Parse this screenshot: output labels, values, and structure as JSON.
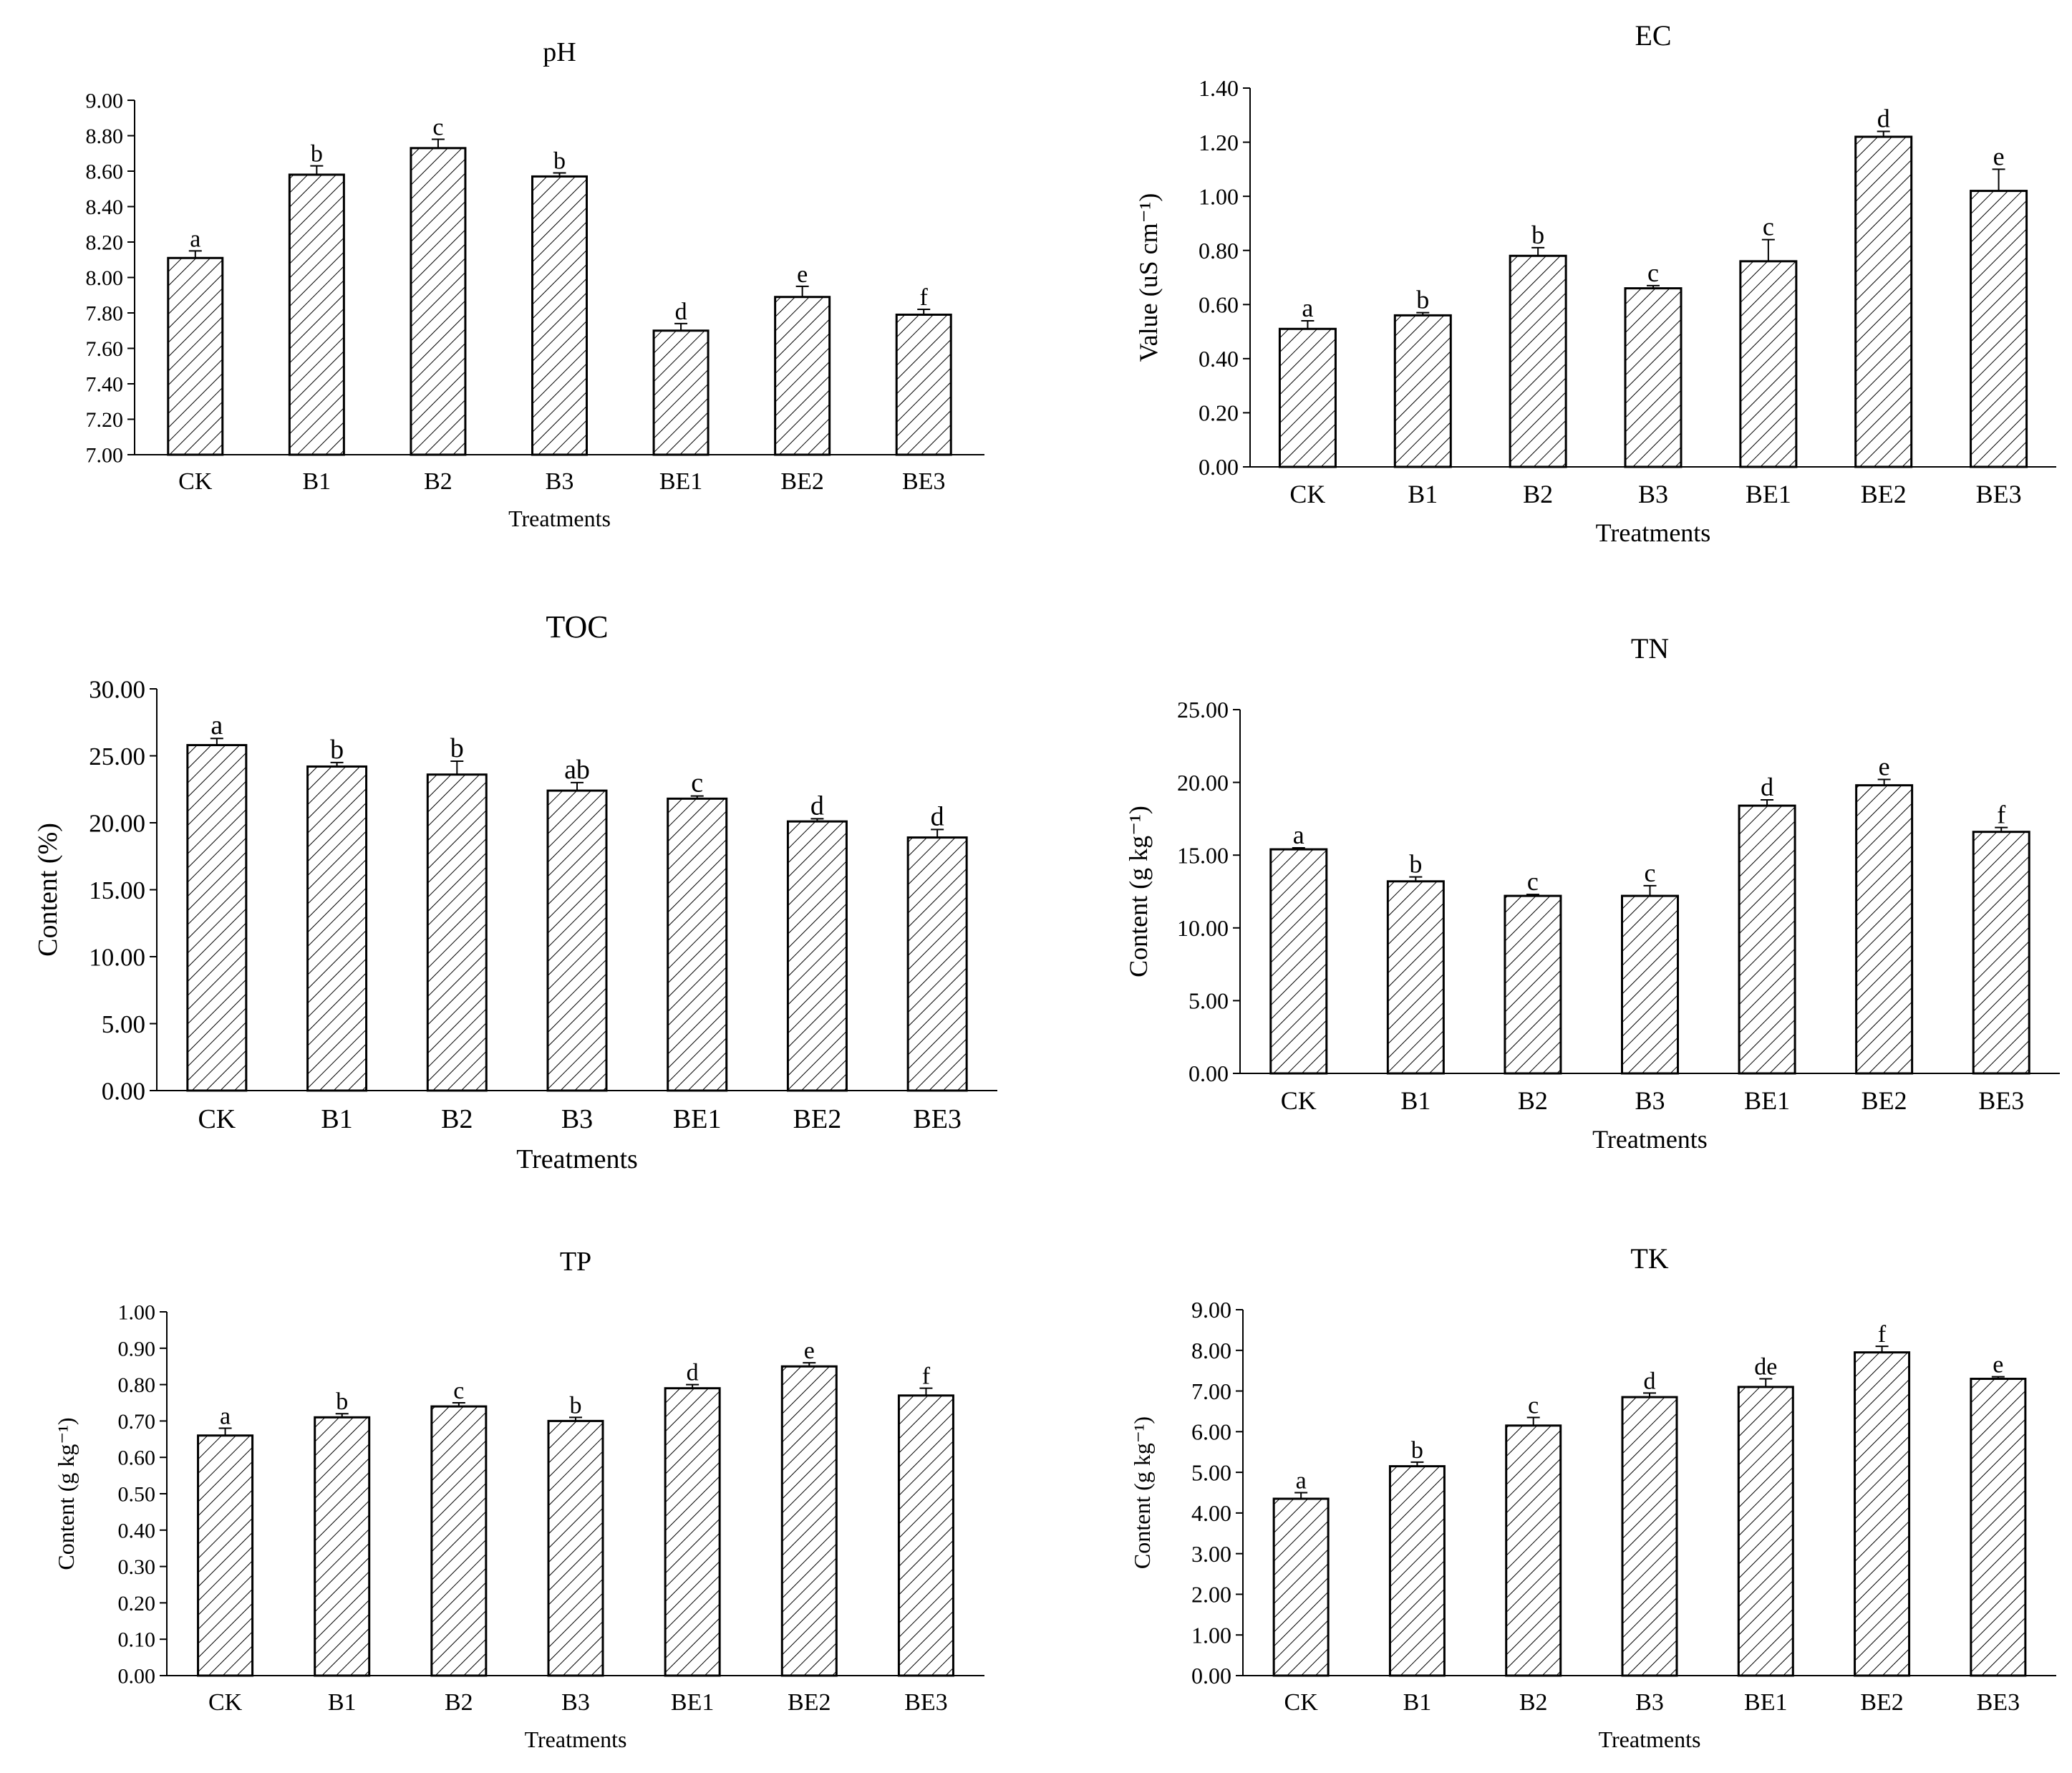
{
  "chart_data": [
    {
      "type": "bar",
      "title": "pH",
      "xlabel": "Treatments",
      "ylabel": "",
      "categories": [
        "CK",
        "B1",
        "B2",
        "B3",
        "BE1",
        "BE2",
        "BE3"
      ],
      "values": [
        8.11,
        8.58,
        8.73,
        8.57,
        7.7,
        7.89,
        7.79
      ],
      "errors": [
        0.04,
        0.05,
        0.05,
        0.02,
        0.04,
        0.06,
        0.03
      ],
      "letters": [
        "a",
        "b",
        "c",
        "b",
        "d",
        "e",
        "f"
      ],
      "ylim": [
        7.0,
        9.0
      ],
      "yticks": [
        "7.00",
        "7.20",
        "7.40",
        "7.60",
        "7.80",
        "8.00",
        "8.20",
        "8.40",
        "8.60",
        "8.80",
        "9.00"
      ],
      "grid": false
    },
    {
      "type": "bar",
      "title": "EC",
      "xlabel": "Treatments",
      "ylabel": "Value (uS cm⁻¹)",
      "categories": [
        "CK",
        "B1",
        "B2",
        "B3",
        "BE1",
        "BE2",
        "BE3"
      ],
      "values": [
        0.51,
        0.56,
        0.78,
        0.66,
        0.76,
        1.22,
        1.02
      ],
      "errors": [
        0.03,
        0.01,
        0.03,
        0.01,
        0.08,
        0.02,
        0.08
      ],
      "letters": [
        "a",
        "b",
        "b",
        "c",
        "c",
        "d",
        "e"
      ],
      "ylim": [
        0.0,
        1.4
      ],
      "yticks": [
        "0.00",
        "0.20",
        "0.40",
        "0.60",
        "0.80",
        "1.00",
        "1.20",
        "1.40"
      ],
      "grid": false
    },
    {
      "type": "bar",
      "title": "TOC",
      "xlabel": "Treatments",
      "ylabel": "Content (%)",
      "categories": [
        "CK",
        "B1",
        "B2",
        "B3",
        "BE1",
        "BE2",
        "BE3"
      ],
      "values": [
        25.8,
        24.2,
        23.6,
        22.4,
        21.8,
        20.1,
        18.9
      ],
      "errors": [
        0.5,
        0.3,
        1.0,
        0.6,
        0.2,
        0.2,
        0.6
      ],
      "letters": [
        "a",
        "b",
        "b",
        "ab",
        "c",
        "d",
        "d"
      ],
      "ylim": [
        0.0,
        30.0
      ],
      "yticks": [
        "0.00",
        "5.00",
        "10.00",
        "15.00",
        "20.00",
        "25.00",
        "30.00"
      ],
      "grid": false
    },
    {
      "type": "bar",
      "title": "TN",
      "xlabel": "Treatments",
      "ylabel": "Content (g kg⁻¹)",
      "categories": [
        "CK",
        "B1",
        "B2",
        "B3",
        "BE1",
        "BE2",
        "BE3"
      ],
      "values": [
        15.4,
        13.2,
        12.2,
        12.2,
        18.4,
        19.8,
        16.6
      ],
      "errors": [
        0.1,
        0.3,
        0.1,
        0.7,
        0.4,
        0.4,
        0.3
      ],
      "letters": [
        "a",
        "b",
        "c",
        "c",
        "d",
        "e",
        "f"
      ],
      "ylim": [
        0.0,
        25.0
      ],
      "yticks": [
        "0.00",
        "5.00",
        "10.00",
        "15.00",
        "20.00",
        "25.00"
      ],
      "grid": false
    },
    {
      "type": "bar",
      "title": "TP",
      "xlabel": "Treatments",
      "ylabel": "Content (g kg⁻¹)",
      "categories": [
        "CK",
        "B1",
        "B2",
        "B3",
        "BE1",
        "BE2",
        "BE3"
      ],
      "values": [
        0.66,
        0.71,
        0.74,
        0.7,
        0.79,
        0.85,
        0.77
      ],
      "errors": [
        0.02,
        0.01,
        0.01,
        0.01,
        0.01,
        0.01,
        0.02
      ],
      "letters": [
        "a",
        "b",
        "c",
        "b",
        "d",
        "e",
        "f"
      ],
      "ylim": [
        0.0,
        1.0
      ],
      "yticks": [
        "0.00",
        "0.10",
        "0.20",
        "0.30",
        "0.40",
        "0.50",
        "0.60",
        "0.70",
        "0.80",
        "0.90",
        "1.00"
      ],
      "grid": false
    },
    {
      "type": "bar",
      "title": "TK",
      "xlabel": "Treatments",
      "ylabel": "Content (g kg⁻¹)",
      "categories": [
        "CK",
        "B1",
        "B2",
        "B3",
        "BE1",
        "BE2",
        "BE3"
      ],
      "values": [
        4.35,
        5.15,
        6.15,
        6.85,
        7.1,
        7.95,
        7.3
      ],
      "errors": [
        0.15,
        0.1,
        0.2,
        0.1,
        0.2,
        0.15,
        0.05
      ],
      "letters": [
        "a",
        "b",
        "c",
        "d",
        "de",
        "f",
        "e"
      ],
      "ylim": [
        0.0,
        9.0
      ],
      "yticks": [
        "0.00",
        "1.00",
        "2.00",
        "3.00",
        "4.00",
        "5.00",
        "6.00",
        "7.00",
        "8.00",
        "9.00"
      ],
      "grid": false
    }
  ]
}
